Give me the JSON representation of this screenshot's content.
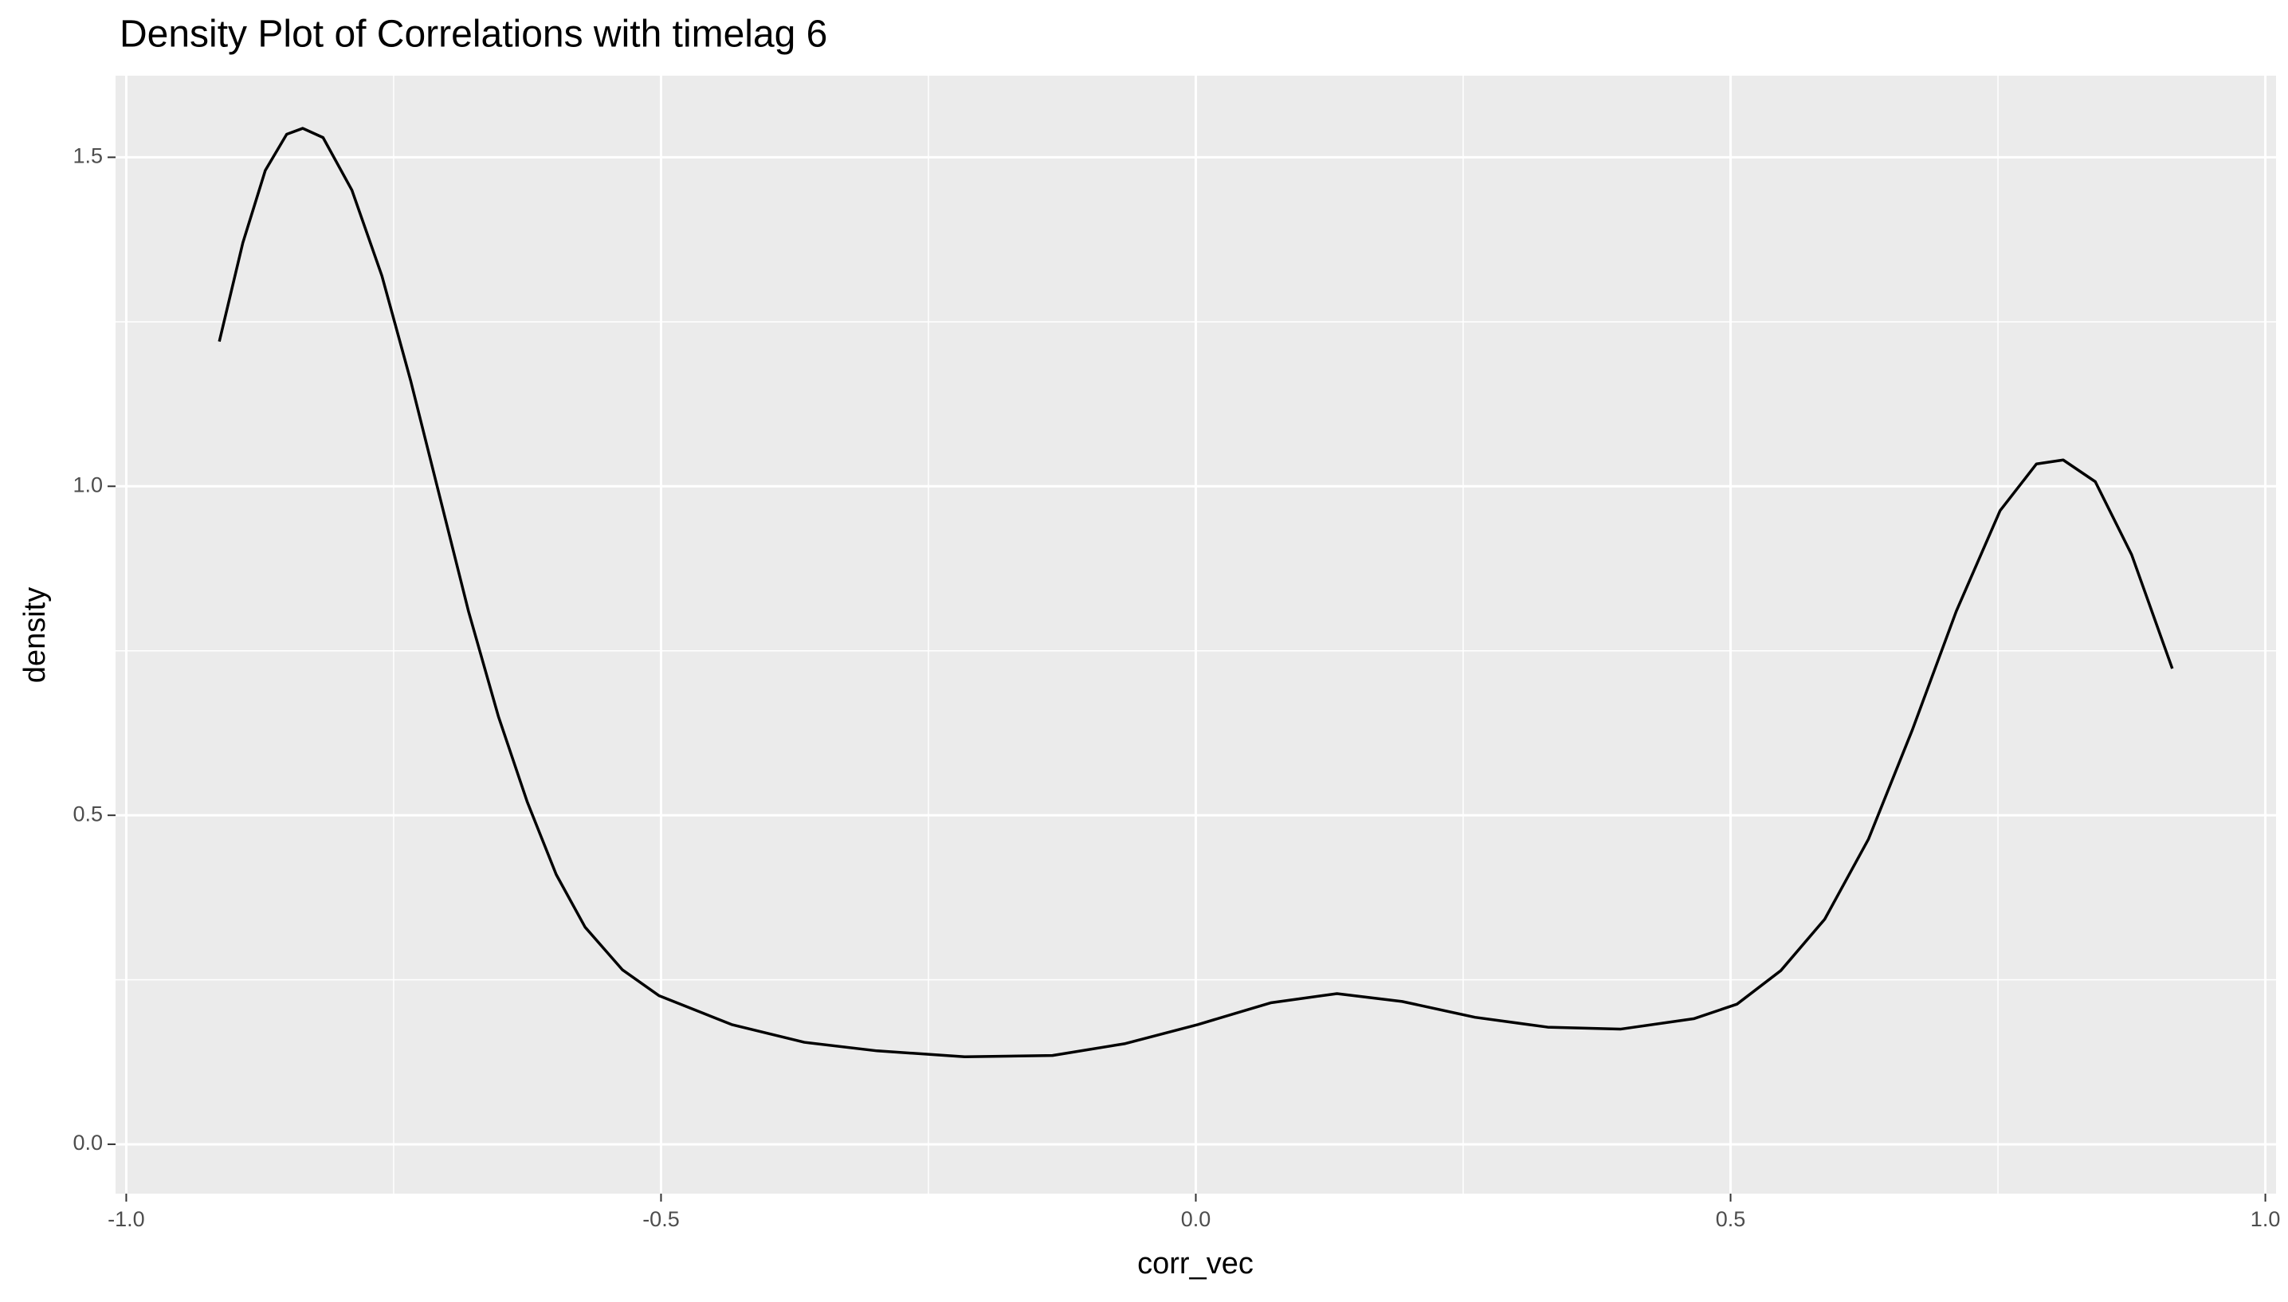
{
  "chart_data": {
    "type": "line",
    "title": "Density Plot of Correlations with timelag 6",
    "xlabel": "corr_vec",
    "ylabel": "density",
    "x": [
      -0.913,
      -0.891,
      -0.87,
      -0.85,
      -0.835,
      -0.816,
      -0.789,
      -0.761,
      -0.734,
      -0.707,
      -0.68,
      -0.652,
      -0.625,
      -0.598,
      -0.571,
      -0.536,
      -0.502,
      -0.434,
      -0.366,
      -0.298,
      -0.216,
      -0.134,
      -0.066,
      0.002,
      0.07,
      0.132,
      0.193,
      0.261,
      0.329,
      0.397,
      0.466,
      0.506,
      0.547,
      0.588,
      0.629,
      0.67,
      0.711,
      0.752,
      0.786,
      0.811,
      0.841,
      0.875,
      0.913
    ],
    "series": [
      {
        "name": "density",
        "color": "#000000",
        "values": [
          1.22,
          1.37,
          1.48,
          1.535,
          1.544,
          1.53,
          1.45,
          1.32,
          1.16,
          0.985,
          0.81,
          0.65,
          0.52,
          0.41,
          0.33,
          0.265,
          0.226,
          0.182,
          0.155,
          0.142,
          0.133,
          0.135,
          0.153,
          0.182,
          0.215,
          0.229,
          0.217,
          0.193,
          0.178,
          0.175,
          0.191,
          0.213,
          0.264,
          0.342,
          0.464,
          0.63,
          0.81,
          0.963,
          1.034,
          1.04,
          1.007,
          0.896,
          0.723
        ]
      }
    ],
    "xlim": [
      -1.01,
      1.01
    ],
    "ylim": [
      -0.075,
      1.624
    ],
    "xticks": [
      {
        "value": -1,
        "label": "-1.0"
      },
      -0.5,
      {
        "value": 0,
        "label": "0.0"
      },
      0.5,
      {
        "value": 1,
        "label": "1.0"
      }
    ],
    "yticks": [
      {
        "value": 0,
        "label": "0.0"
      },
      0.5,
      {
        "value": 1,
        "label": "1.0"
      },
      1.5
    ],
    "xminor": [
      -0.75,
      -0.25,
      0.25,
      0.75
    ],
    "yminor": [
      0.25,
      0.75,
      1.25
    ],
    "grid": true,
    "background": "#ebebeb"
  }
}
